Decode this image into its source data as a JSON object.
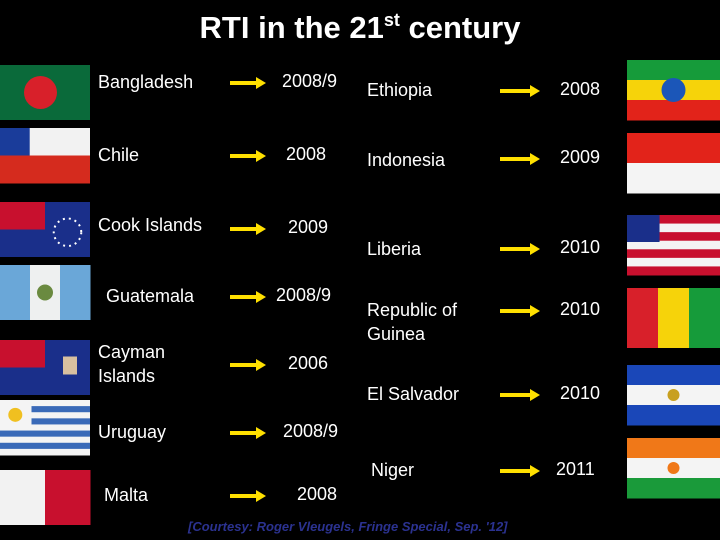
{
  "title": {
    "main": "RTI in the 21",
    "superscript": "st",
    "rest": "century"
  },
  "left": [
    {
      "country": "Bangladesh",
      "year": "2008/9"
    },
    {
      "country": "Chile",
      "year": "2008"
    },
    {
      "country": "Cook Islands",
      "year": "2009"
    },
    {
      "country": "Guatemala",
      "year": "2008/9"
    },
    {
      "country": "Cayman Islands",
      "year": "2006"
    },
    {
      "country": "Uruguay",
      "year": "2008/9"
    },
    {
      "country": "Malta",
      "year": "2008"
    }
  ],
  "right": [
    {
      "country": "Ethiopia",
      "year": "2008"
    },
    {
      "country": "Indonesia",
      "year": "2009"
    },
    {
      "country": "Liberia",
      "year": "2010"
    },
    {
      "country": "Republic of Guinea",
      "year": "2010"
    },
    {
      "country": "El Salvador",
      "year": "2010"
    },
    {
      "country": "Niger",
      "year": "2011"
    }
  ],
  "footer": "[Courtesy: Roger Vleugels, Fringe Special, Sep. '12]"
}
